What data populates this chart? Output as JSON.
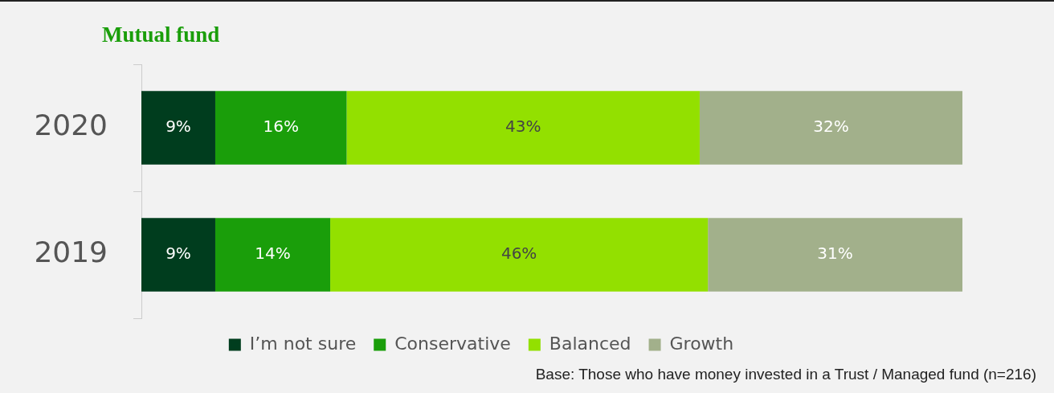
{
  "chart_data": {
    "type": "bar",
    "orientation": "horizontal",
    "stacked": true,
    "title": "Mutual fund",
    "categories": [
      "2020",
      "2019"
    ],
    "series": [
      {
        "name": "I’m not sure",
        "color": "#003d1e",
        "values": [
          9,
          9
        ],
        "value_labels": [
          "9%",
          "9%"
        ]
      },
      {
        "name": "Conservative",
        "color": "#1a9e0a",
        "values": [
          16,
          14
        ],
        "value_labels": [
          "16%",
          "14%"
        ]
      },
      {
        "name": "Balanced",
        "color": "#93e000",
        "values": [
          43,
          46
        ],
        "value_labels": [
          "43%",
          "46%"
        ]
      },
      {
        "name": "Growth",
        "color": "#a2b08b",
        "values": [
          32,
          31
        ],
        "value_labels": [
          "32%",
          "31%"
        ]
      }
    ],
    "legend": "bottom",
    "annotations": [
      "Base: Those who have money invested in a Trust / Managed fund (n=216)"
    ]
  }
}
